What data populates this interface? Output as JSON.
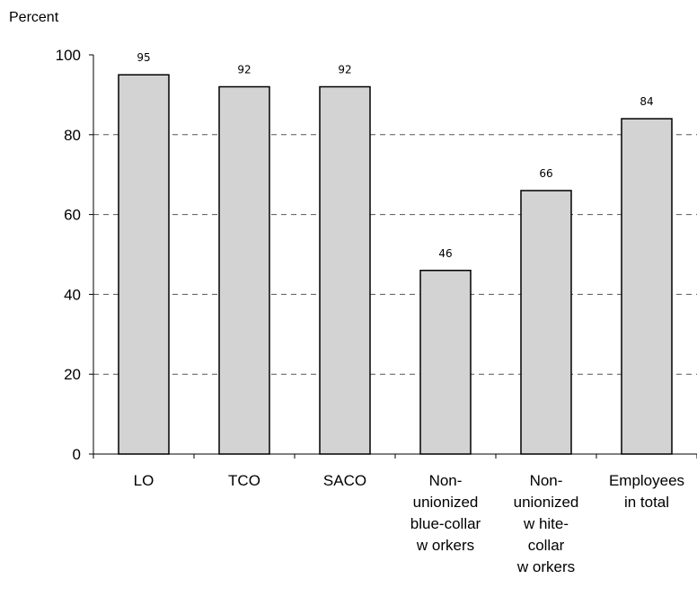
{
  "chart_data": {
    "type": "bar",
    "title": "",
    "ylabel": "Percent",
    "xlabel": "",
    "ylim": [
      0,
      100
    ],
    "yticks": [
      0,
      20,
      40,
      60,
      80,
      100
    ],
    "grid": true,
    "bar_color": "#d3d3d3",
    "categories": [
      [
        "LO"
      ],
      [
        "TCO"
      ],
      [
        "SACO"
      ],
      [
        "Non-",
        "unionized",
        "blue-collar",
        "w orkers"
      ],
      [
        "Non-",
        "unionized",
        "w hite-",
        "collar",
        "w orkers"
      ],
      [
        "Employees",
        "in total"
      ]
    ],
    "values": [
      95,
      92,
      92,
      46,
      66,
      84
    ]
  }
}
